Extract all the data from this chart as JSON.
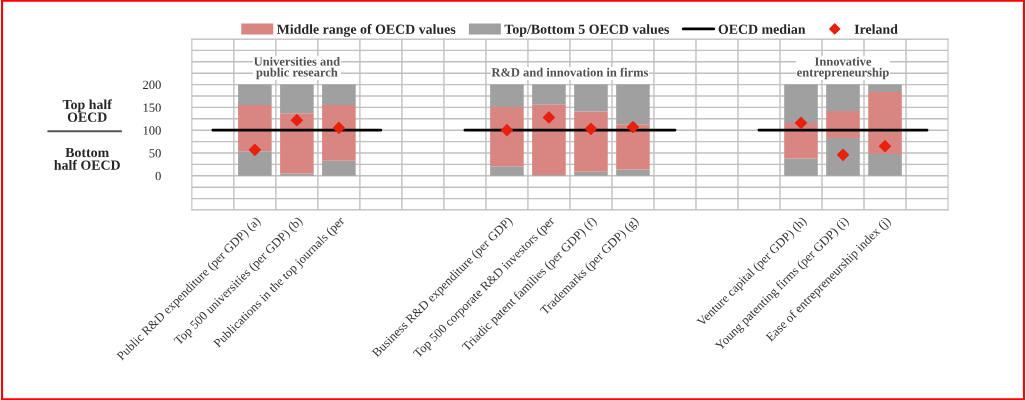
{
  "chart_data": {
    "type": "bar",
    "stacked": true,
    "categories": [
      null,
      "Public R&D expenditure (per GDP) (a)",
      "Top 500 universities (per GDP) (b)",
      "Publications in the top journals (per",
      null,
      null,
      null,
      "Business R&D expenditure (per GDP)",
      "Top 500 corporate R&D investors (per",
      "Triadic patent families (per GDP) (f)",
      "Trademarks (per GDP) (g)",
      null,
      null,
      null,
      "Venture capital (per GDP) (h)",
      "Young patenting firms (per GDP) (i)",
      "Ease of entrepreneurship index (j)",
      null
    ],
    "series": [
      {
        "name": "Top/Bottom 5 OECD values",
        "color": "#a0a0a0",
        "values": [
          null,
          54,
          5,
          33,
          null,
          null,
          null,
          21,
          2,
          9,
          14,
          null,
          null,
          null,
          38,
          83,
          48,
          null
        ]
      },
      {
        "name": "Middle range of OECD values",
        "color": "#d98683",
        "values": [
          null,
          101,
          132,
          122,
          null,
          null,
          null,
          130,
          154,
          132,
          99,
          null,
          null,
          null,
          78,
          59,
          136,
          null
        ]
      },
      {
        "color": "#a0a0a0",
        "values": [
          null,
          45,
          63,
          45,
          null,
          null,
          null,
          49,
          44,
          59,
          87,
          null,
          null,
          null,
          84,
          58,
          16,
          null
        ]
      },
      {
        "name": "OECD median",
        "type": "line",
        "color": "#000000",
        "marker": "none",
        "values": [
          100,
          100,
          100,
          100,
          100,
          null,
          100,
          100,
          100,
          100,
          100,
          100,
          null,
          100,
          100,
          100,
          100,
          100
        ]
      },
      {
        "name": "Ireland",
        "type": "scatter",
        "color": "#e8200f",
        "marker": "diamond",
        "values": [
          null,
          57,
          122,
          105,
          null,
          null,
          null,
          100,
          128,
          103,
          107,
          null,
          null,
          null,
          116,
          46,
          65,
          null
        ]
      }
    ],
    "ylim": [
      -75,
      300
    ],
    "yticks": [
      {
        "value": -75,
        "label": null
      },
      {
        "value": -50,
        "label": null
      },
      {
        "value": -25,
        "label": null
      },
      0,
      {
        "value": 25,
        "label": null
      },
      50,
      {
        "value": 75,
        "label": null
      },
      100,
      {
        "value": 125,
        "label": null
      },
      150,
      {
        "value": 175,
        "label": null
      },
      200,
      {
        "value": 225,
        "label": null
      },
      {
        "value": 250,
        "label": null
      },
      {
        "value": 275,
        "label": null
      },
      {
        "value": 300,
        "label": null
      }
    ],
    "grid": true,
    "legend": "top",
    "annotations": [
      "Universities and\npublic research",
      "R&D and innovation in firms",
      "Innovative\nentrepreneurship",
      "Top half\nOECD",
      "Bottom\nhalf OECD"
    ]
  }
}
